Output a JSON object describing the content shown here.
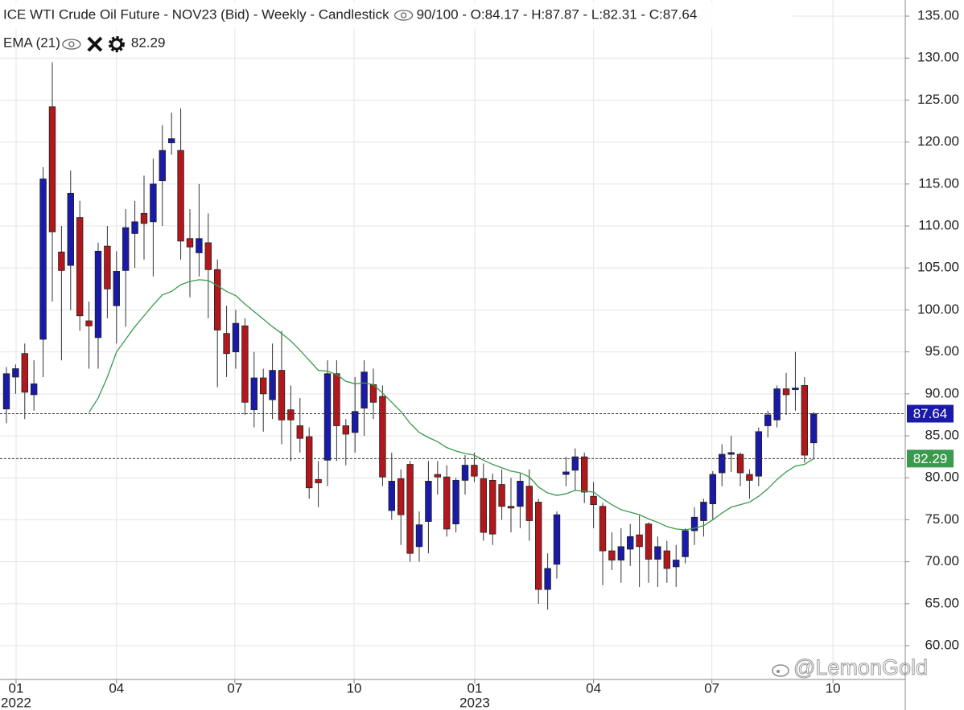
{
  "chart_data": {
    "type": "candlestick",
    "title": "ICE WTI Crude Oil Future - NOV23 (Bid) - Weekly - Candlestick",
    "title_info": "90/100 - O:84.17 - H:87.87 - L:82.31 - C:87.64",
    "x": [
      0,
      1,
      2,
      3,
      4,
      5,
      6,
      7,
      8,
      9,
      10,
      11,
      12,
      13,
      14,
      15,
      16,
      17,
      18,
      19,
      20,
      21,
      22,
      23,
      24,
      25,
      26,
      27,
      28,
      29,
      30,
      31,
      32,
      33,
      34,
      35,
      36,
      37,
      38,
      39,
      40,
      41,
      42,
      43,
      44,
      45,
      46,
      47,
      48,
      49,
      50,
      51,
      52,
      53,
      54,
      55,
      56,
      57,
      58,
      59,
      60,
      61,
      62,
      63,
      64,
      65,
      66,
      67,
      68,
      69,
      70,
      71,
      72,
      73,
      74,
      75,
      76,
      77,
      78,
      79,
      80,
      81,
      82,
      83,
      84,
      85,
      86,
      87,
      88
    ],
    "open": [
      88.2,
      92,
      94.8,
      89.9,
      96.5,
      124.2,
      106.9,
      105.3,
      111,
      98.7,
      96.7,
      107.6,
      100.5,
      104.7,
      109.1,
      111.5,
      110.5,
      115.4,
      119.9,
      119,
      108.5,
      106.8,
      108,
      104.8,
      97.2,
      95,
      98.1,
      88.1,
      91.9,
      89.3,
      92.8,
      88.1,
      86.2,
      84.9,
      79.8,
      82.1,
      92.4,
      86.2,
      85.4,
      88.3,
      91.1,
      89.7,
      76.1,
      79.9,
      81.6,
      71.8,
      74.8,
      80.4,
      80.1,
      74.5,
      79.7,
      81.5,
      79.9,
      79.7,
      79.2,
      76.6,
      76.6,
      79,
      77.1,
      66.7,
      69.7,
      80.4,
      80.9,
      82.5,
      77.8,
      76.6,
      71.3,
      70.2,
      71.5,
      73.2,
      74.5,
      70.3,
      71.3,
      69.4,
      70.6,
      73.7,
      74.9,
      76.9,
      80.6,
      82.8,
      82.8,
      80.4,
      80.2,
      86.2,
      86.9,
      90.6,
      90.5,
      91,
      84.17
    ],
    "high": [
      93.2,
      93.5,
      96,
      94,
      117,
      129.5,
      110,
      116.6,
      113,
      101,
      108,
      110,
      107,
      112,
      113,
      116,
      118,
      122,
      123.5,
      124,
      112,
      115,
      111.5,
      106,
      100.5,
      100,
      99,
      95,
      93,
      96,
      97.5,
      91,
      89.5,
      86,
      82,
      94,
      94,
      87,
      92,
      94,
      93,
      91,
      83,
      81,
      82,
      76,
      82,
      82,
      81.5,
      80,
      82.7,
      83,
      81.7,
      80.5,
      81,
      80,
      80.5,
      81,
      77.5,
      71,
      76,
      82.5,
      83.5,
      83,
      79.5,
      77,
      73.5,
      74,
      74.5,
      75.5,
      74.7,
      73,
      72.5,
      72,
      74,
      76.5,
      77.5,
      80.8,
      84,
      85,
      83,
      81,
      86,
      88,
      91,
      92.5,
      95,
      92,
      87.87
    ],
    "low": [
      86.5,
      90,
      87,
      88,
      92,
      101,
      94,
      100,
      97.5,
      93,
      93,
      99,
      96,
      98,
      105,
      106,
      104,
      110,
      118.5,
      106,
      101.5,
      104,
      99,
      90.8,
      92,
      93,
      87.5,
      86,
      85.5,
      87,
      84,
      82,
      83,
      77.5,
      76.5,
      79,
      82,
      81.5,
      83,
      85,
      87,
      79,
      75,
      72,
      70,
      70,
      71,
      78,
      73,
      73.5,
      78,
      79.5,
      72.5,
      72,
      75,
      73.5,
      74,
      72.5,
      65,
      64.3,
      68,
      79,
      78.5,
      77,
      74,
      67.2,
      69,
      67.5,
      69.5,
      67,
      67.5,
      67,
      67.5,
      67,
      69.8,
      72,
      73,
      75,
      79,
      80.7,
      79,
      77.5,
      79,
      84.8,
      86,
      87.5,
      88,
      81.8,
      82.31
    ],
    "close": [
      92.4,
      93,
      90.2,
      91.2,
      115.6,
      109.3,
      104.7,
      113.9,
      99.3,
      98.1,
      107,
      102.5,
      104.6,
      109.8,
      110.5,
      110.3,
      115,
      119,
      120.4,
      108.2,
      107.5,
      108.5,
      104.8,
      97.6,
      94.8,
      98.4,
      89,
      91.9,
      90,
      92.8,
      86.9,
      86.9,
      84.7,
      78.8,
      79.4,
      92.4,
      86.2,
      85.2,
      87.9,
      92.6,
      89,
      80.1,
      79.6,
      75.6,
      71,
      74.4,
      79.6,
      80.1,
      73.9,
      79.7,
      81.5,
      80.2,
      73.5,
      73.3,
      76.6,
      76.4,
      79.6,
      74.9,
      66.7,
      69.2,
      75.6,
      80.7,
      82.5,
      78.3,
      76.8,
      71.3,
      70.2,
      71.8,
      73,
      71.8,
      70.3,
      71.8,
      69.2,
      70.2,
      73.7,
      75.3,
      77.1,
      80.4,
      82.8,
      83,
      80.6,
      79.7,
      85.5,
      87.5,
      90.6,
      89.9,
      90.7,
      82.7,
      87.64
    ],
    "up_color": "#1a1aa8",
    "down_color": "#b2181b",
    "indicator": {
      "name": "EMA (21)",
      "color": "#3a9a4e",
      "values": [
        null,
        null,
        null,
        null,
        null,
        null,
        null,
        null,
        null,
        87.8,
        89.5,
        92,
        95,
        96.5,
        98,
        99.3,
        100.6,
        101.8,
        102.2,
        103,
        103.4,
        103.6,
        103.5,
        102.9,
        102.2,
        101.7,
        100.7,
        99.8,
        98.9,
        98,
        97.2,
        96.3,
        95.2,
        94,
        92.8,
        92.7,
        92.3,
        91.5,
        91.2,
        91.3,
        91.1,
        90.1,
        89,
        87.9,
        86.5,
        85.4,
        84.8,
        84.3,
        83.6,
        83.2,
        82.9,
        82.7,
        82.1,
        81.6,
        81.2,
        80.8,
        80.6,
        80.1,
        78.9,
        78.2,
        77.9,
        78.1,
        78.5,
        78.4,
        78.3,
        77.5,
        76.8,
        76.2,
        75.9,
        75.6,
        75.1,
        74.7,
        74.2,
        73.9,
        73.8,
        74,
        74.3,
        75,
        75.8,
        76.5,
        76.8,
        77.1,
        77.8,
        78.7,
        79.8,
        80.7,
        81.4,
        81.6,
        82.29
      ]
    },
    "xlim": [
      -0.7,
      97.98
    ],
    "ylim": [
      55.98,
      136.92
    ],
    "xticks": [
      {
        "value": 1.05,
        "label": "01"
      },
      {
        "value": 12.0,
        "label": "04"
      },
      {
        "value": 24.9,
        "label": "07"
      },
      {
        "value": 37.9,
        "label": "10"
      },
      {
        "value": 51.05,
        "label": "01"
      },
      {
        "value": 64.0,
        "label": "04"
      },
      {
        "value": 76.9,
        "label": "07"
      },
      {
        "value": 90.1,
        "label": "10"
      }
    ],
    "xticks_year": [
      {
        "value": 1.05,
        "label": "2022"
      },
      {
        "value": 51.05,
        "label": "2023"
      }
    ],
    "yticks": [
      {
        "value": 60,
        "label": "60.00"
      },
      {
        "value": 65,
        "label": "65.00"
      },
      {
        "value": 70,
        "label": "70.00"
      },
      {
        "value": 75,
        "label": "75.00"
      },
      {
        "value": 80,
        "label": "80.00"
      },
      {
        "value": 85,
        "label": "85.00"
      },
      {
        "value": 90,
        "label": "90.00"
      },
      {
        "value": 95,
        "label": "95.00"
      },
      {
        "value": 100,
        "label": "100.00"
      },
      {
        "value": 105,
        "label": "105.00"
      },
      {
        "value": 110,
        "label": "110.00"
      },
      {
        "value": 115,
        "label": "115.00"
      },
      {
        "value": 120,
        "label": "120.00"
      },
      {
        "value": 125,
        "label": "125.00"
      },
      {
        "value": 130,
        "label": "130.00"
      },
      {
        "value": 135,
        "label": "135.00"
      }
    ],
    "grid": true,
    "watermark": "@LemonGold"
  }
}
